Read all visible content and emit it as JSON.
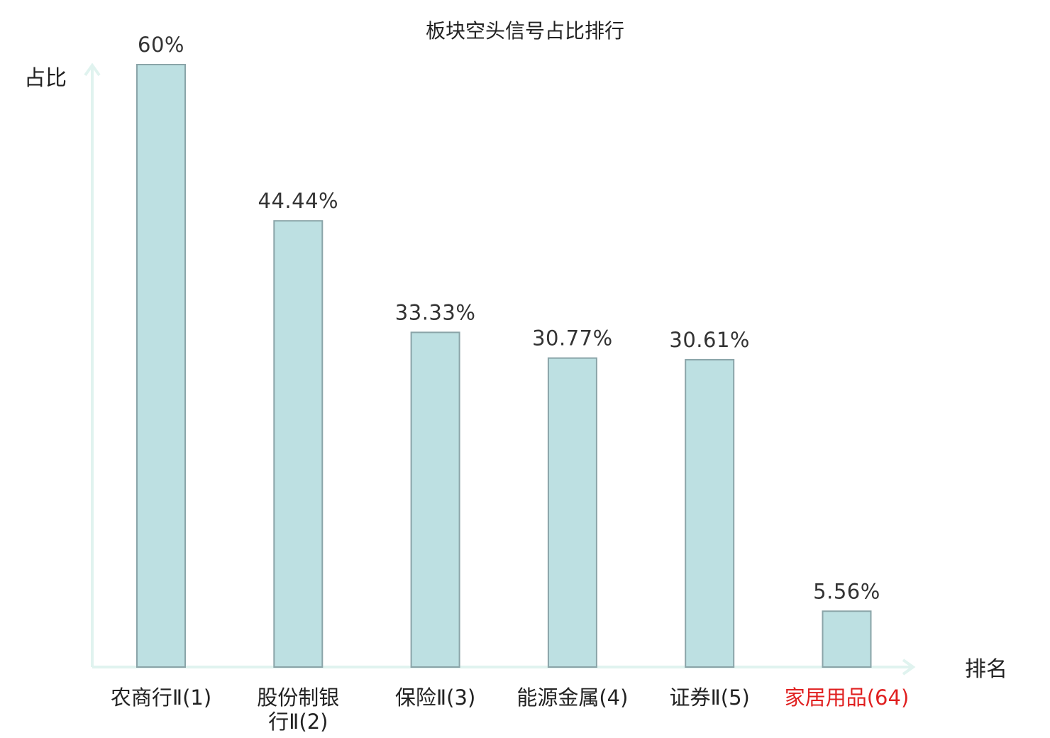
{
  "chart_data": {
    "type": "bar",
    "title": "板块空头信号占比排行",
    "ylabel": "占比",
    "xlabel": "排名",
    "ylim": [
      0,
      60
    ],
    "grid": false,
    "categories": [
      [
        "农商行Ⅱ(1)"
      ],
      [
        "股份制银",
        "行Ⅱ(2)"
      ],
      [
        "保险Ⅱ(3)"
      ],
      [
        "能源金属(4)"
      ],
      [
        "证券Ⅱ(5)"
      ],
      [
        "家居用品(64)"
      ]
    ],
    "values": [
      60,
      44.44,
      33.33,
      30.77,
      30.61,
      5.56
    ],
    "value_labels": [
      "60%",
      "44.44%",
      "33.33%",
      "30.77%",
      "30.61%",
      "5.56%"
    ],
    "highlight_index": 5
  },
  "colors": {
    "bar_fill": "#bde0e2",
    "bar_stroke": "#8aa4a8",
    "axis": "#e0f3ef",
    "text": "#222222",
    "highlight_text": "#e02020"
  }
}
